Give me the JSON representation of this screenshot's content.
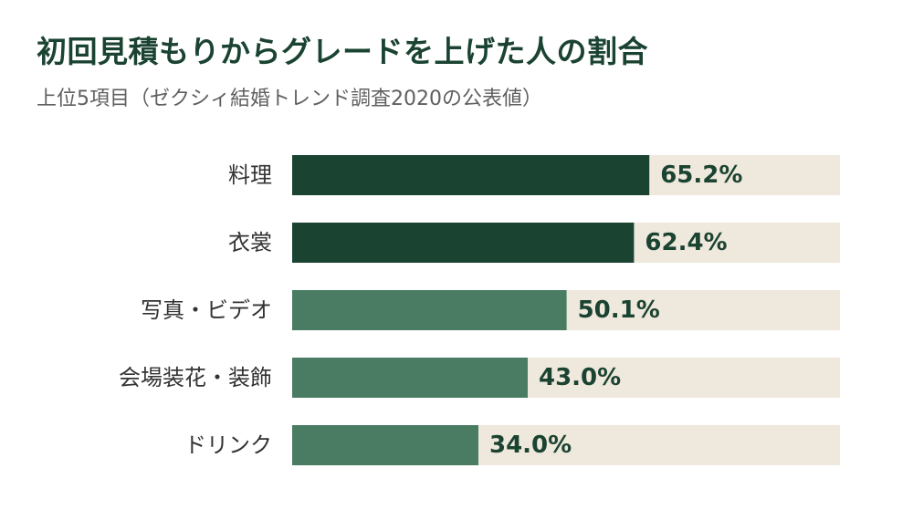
{
  "chart_data": {
    "type": "bar",
    "orientation": "horizontal",
    "title": "初回見積もりからグレードを上げた人の割合",
    "subtitle": "上位5項目（ゼクシィ結婚トレンド調査2020の公表値）",
    "categories": [
      "料理",
      "衣裳",
      "写真・ビデオ",
      "会場装花・装飾",
      "ドリンク"
    ],
    "values": [
      65.2,
      62.4,
      50.1,
      43.0,
      34.0
    ],
    "value_labels": [
      "65.2%",
      "62.4%",
      "50.1%",
      "43.0%",
      "34.0%"
    ],
    "xlim": [
      0,
      100
    ],
    "unit": "%",
    "grid": false,
    "legend": "none"
  },
  "colors": {
    "title": "#1b4332",
    "subtitle": "#5f5f5f",
    "bar_dark": "#1b4332",
    "bar_light": "#4a7c63",
    "track": "#efe8dc",
    "value_text": "#1b4332",
    "category_text": "#333333"
  },
  "bar_color_keys": [
    "bar_dark",
    "bar_dark",
    "bar_light",
    "bar_light",
    "bar_light"
  ]
}
